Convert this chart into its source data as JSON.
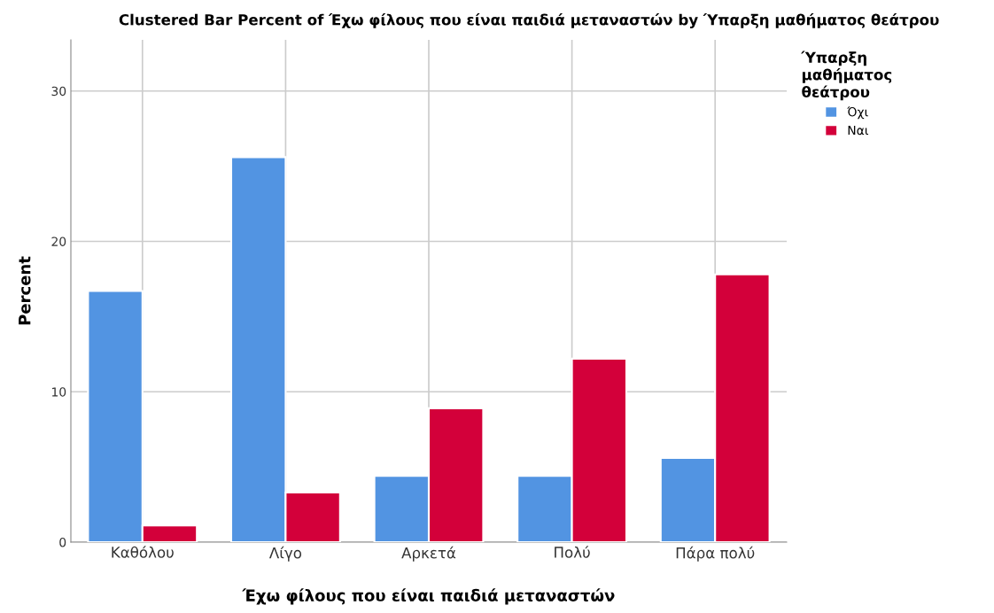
{
  "chart_data": {
    "type": "bar",
    "title": "Clustered Bar Percent of Έχω φίλους που είναι παιδιά μεταναστών by Ύπαρξη μαθήματος θεάτρου",
    "xlabel": "Έχω φίλους που είναι παιδιά μεταναστών",
    "ylabel": "Percent",
    "legend_title": "Ύπαρξη\nμαθήματος\nθεάτρου",
    "categories": [
      "Καθόλου",
      "Λίγο",
      "Αρκετά",
      "Πολύ",
      "Πάρα πολύ"
    ],
    "series": [
      {
        "name": "Όχι",
        "color": "#5294e2",
        "values": [
          16.7,
          25.6,
          4.4,
          4.4,
          5.6
        ]
      },
      {
        "name": "Ναι",
        "color": "#d3003a",
        "values": [
          1.1,
          3.3,
          8.9,
          12.2,
          17.8
        ]
      }
    ],
    "ylim": [
      0,
      33.4
    ],
    "yticks": [
      0,
      10,
      20,
      30
    ],
    "grid": true,
    "legend": "right"
  }
}
